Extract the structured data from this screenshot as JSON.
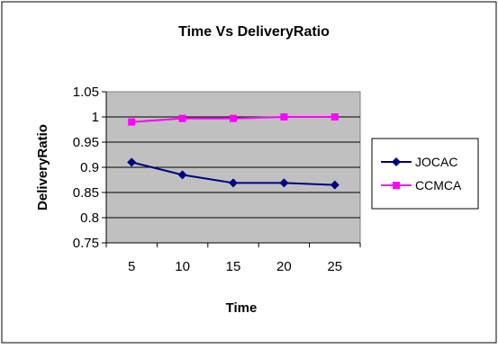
{
  "chart_data": {
    "type": "line",
    "title": "Time Vs DeliveryRatio",
    "xlabel": "Time",
    "ylabel": "DeliveryRatio",
    "categories": [
      "5",
      "10",
      "15",
      "20",
      "25"
    ],
    "ylim": [
      0.75,
      1.05
    ],
    "yticks": [
      "0.75",
      "0.8",
      "0.85",
      "0.9",
      "0.95",
      "1",
      "1.05"
    ],
    "grid": "horizontal",
    "legend_position": "right",
    "series": [
      {
        "name": "JOCAC",
        "marker": "diamond",
        "color": "#000080",
        "values": [
          0.91,
          0.885,
          0.869,
          0.869,
          0.865
        ]
      },
      {
        "name": "CCMCA",
        "marker": "square",
        "color": "#FF00FF",
        "values": [
          0.99,
          0.997,
          0.997,
          1.0,
          1.0
        ]
      }
    ]
  }
}
